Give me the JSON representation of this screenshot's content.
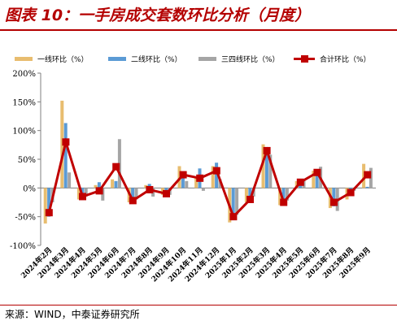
{
  "header": {
    "title": "图表 10：一手房成交套数环比分析（月度）"
  },
  "footer": {
    "source": "来源：WIND，中泰证券研究所"
  },
  "colors": {
    "brand_red": "#b40000",
    "tier1": "#e8bd6f",
    "tier2": "#5b9bd5",
    "tier34": "#a5a5a5",
    "total": "#c00000"
  },
  "chart_data": {
    "type": "bar",
    "categories": [
      "2024年2月",
      "2024年3月",
      "2024年4月",
      "2024年5月",
      "2024年6月",
      "2024年7月",
      "2024年8月",
      "2024年9月",
      "2024年10月",
      "2024年11月",
      "2024年12月",
      "2025年1月",
      "2025年2月",
      "2025年3月",
      "2025年4月",
      "2025年5月",
      "2025年6月",
      "2025年7月",
      "2025年8月",
      "2025年9月"
    ],
    "y_tick_labels": [
      "200%",
      "150%",
      "100%",
      "50%",
      "0%",
      "-50%",
      "-100%"
    ],
    "ylim": [
      -100,
      200
    ],
    "yticks": [
      -100,
      -50,
      0,
      50,
      100,
      150,
      200
    ],
    "legend_position": "top",
    "series": [
      {
        "name": "一线环比（%）",
        "kind": "bar",
        "color": "#e8bd6f",
        "values": [
          -62,
          152,
          -20,
          5,
          15,
          -25,
          5,
          -12,
          38,
          20,
          38,
          -60,
          -25,
          76,
          -30,
          12,
          30,
          -35,
          -20,
          42
        ]
      },
      {
        "name": "二线环比（%）",
        "kind": "bar",
        "color": "#5b9bd5",
        "values": [
          -50,
          113,
          -18,
          10,
          12,
          -20,
          7,
          -12,
          20,
          34,
          44,
          -50,
          -25,
          70,
          -28,
          5,
          32,
          -32,
          -12,
          2
        ]
      },
      {
        "name": "三四线环比（%）",
        "kind": "bar",
        "color": "#a5a5a5",
        "values": [
          -25,
          27,
          -15,
          -22,
          85,
          -20,
          -15,
          -12,
          12,
          -5,
          15,
          -47,
          -15,
          58,
          -22,
          14,
          37,
          -40,
          -5,
          35
        ]
      },
      {
        "name": "合计环比（%）",
        "kind": "line",
        "color": "#c00000",
        "values": [
          -43,
          80,
          -15,
          -5,
          37,
          -22,
          -3,
          -10,
          23,
          17,
          30,
          -50,
          -20,
          65,
          -25,
          10,
          27,
          -25,
          -8,
          23
        ]
      }
    ]
  }
}
